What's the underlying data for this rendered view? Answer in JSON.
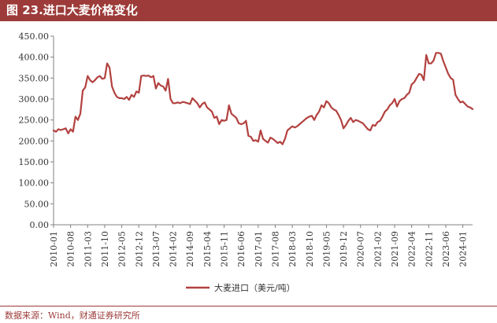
{
  "header": {
    "title": "图 23.进口大麦价格变化"
  },
  "footer": {
    "source": "数据来源：Wind，财通证券研究所"
  },
  "colors": {
    "accent": "#9c3b39",
    "series": "#b2413f",
    "axis": "#808080"
  },
  "chart_data": {
    "type": "line",
    "title": "",
    "xlabel": "",
    "ylabel": "",
    "ylim": [
      0,
      450
    ],
    "y_ticks": [
      "0.00",
      "50.00",
      "100.00",
      "150.00",
      "200.00",
      "250.00",
      "300.00",
      "350.00",
      "400.00",
      "450.00"
    ],
    "x_ticks": [
      "2010-01",
      "2010-08",
      "2011-03",
      "2011-10",
      "2012-05",
      "2012-12",
      "2013-07",
      "2014-02",
      "2014-09",
      "2015-04",
      "2015-11",
      "2016-06",
      "2017-01",
      "2017-08",
      "2018-03",
      "2018-10",
      "2019-05",
      "2019-12",
      "2020-07",
      "2021-02",
      "2021-09",
      "2022-04",
      "2022-11",
      "2023-06",
      "2024-01"
    ],
    "x_range": [
      "2010-01",
      "2024-05"
    ],
    "grid": false,
    "legend": "bottom-center",
    "series": [
      {
        "name": "大麦进口（美元/吨）",
        "x": [
          "2010-01",
          "2010-02",
          "2010-03",
          "2010-04",
          "2010-05",
          "2010-06",
          "2010-07",
          "2010-08",
          "2010-09",
          "2010-10",
          "2010-11",
          "2010-12",
          "2011-01",
          "2011-02",
          "2011-03",
          "2011-04",
          "2011-05",
          "2011-06",
          "2011-07",
          "2011-08",
          "2011-09",
          "2011-10",
          "2011-11",
          "2011-12",
          "2012-01",
          "2012-02",
          "2012-03",
          "2012-04",
          "2012-05",
          "2012-06",
          "2012-07",
          "2012-08",
          "2012-09",
          "2012-10",
          "2012-11",
          "2012-12",
          "2013-01",
          "2013-02",
          "2013-03",
          "2013-04",
          "2013-05",
          "2013-06",
          "2013-07",
          "2013-08",
          "2013-09",
          "2013-10",
          "2013-11",
          "2013-12",
          "2014-01",
          "2014-02",
          "2014-03",
          "2014-04",
          "2014-05",
          "2014-06",
          "2014-07",
          "2014-08",
          "2014-09",
          "2014-10",
          "2014-11",
          "2014-12",
          "2015-01",
          "2015-02",
          "2015-03",
          "2015-04",
          "2015-05",
          "2015-06",
          "2015-07",
          "2015-08",
          "2015-09",
          "2015-10",
          "2015-11",
          "2015-12",
          "2016-01",
          "2016-02",
          "2016-03",
          "2016-04",
          "2016-05",
          "2016-06",
          "2016-07",
          "2016-08",
          "2016-09",
          "2016-10",
          "2016-11",
          "2016-12",
          "2017-01",
          "2017-02",
          "2017-03",
          "2017-04",
          "2017-05",
          "2017-06",
          "2017-07",
          "2017-08",
          "2017-09",
          "2017-10",
          "2017-11",
          "2017-12",
          "2018-01",
          "2018-02",
          "2018-03",
          "2018-04",
          "2018-05",
          "2018-06",
          "2018-07",
          "2018-08",
          "2018-09",
          "2018-10",
          "2018-11",
          "2018-12",
          "2019-01",
          "2019-02",
          "2019-03",
          "2019-04",
          "2019-05",
          "2019-06",
          "2019-07",
          "2019-08",
          "2019-09",
          "2019-10",
          "2019-11",
          "2019-12",
          "2020-01",
          "2020-02",
          "2020-03",
          "2020-04",
          "2020-05",
          "2020-06",
          "2020-07",
          "2020-08",
          "2020-09",
          "2020-10",
          "2020-11",
          "2020-12",
          "2021-01",
          "2021-02",
          "2021-03",
          "2021-04",
          "2021-05",
          "2021-06",
          "2021-07",
          "2021-08",
          "2021-09",
          "2021-10",
          "2021-11",
          "2021-12",
          "2022-01",
          "2022-02",
          "2022-03",
          "2022-04",
          "2022-05",
          "2022-06",
          "2022-07",
          "2022-08",
          "2022-09",
          "2022-10",
          "2022-11",
          "2022-12",
          "2023-01",
          "2023-02",
          "2023-03",
          "2023-04",
          "2023-05",
          "2023-06",
          "2023-07",
          "2023-08",
          "2023-09",
          "2023-10",
          "2023-11",
          "2023-12",
          "2024-01",
          "2024-02",
          "2024-03",
          "2024-04",
          "2024-05"
        ],
        "values": [
          225,
          222,
          228,
          226,
          228,
          230,
          218,
          228,
          222,
          258,
          250,
          265,
          320,
          328,
          355,
          345,
          340,
          345,
          352,
          355,
          348,
          350,
          385,
          375,
          330,
          315,
          305,
          302,
          302,
          300,
          305,
          298,
          310,
          305,
          318,
          315,
          355,
          356,
          355,
          356,
          352,
          355,
          325,
          338,
          332,
          330,
          320,
          348,
          300,
          290,
          290,
          292,
          290,
          293,
          292,
          290,
          288,
          302,
          296,
          290,
          280,
          288,
          292,
          280,
          275,
          270,
          255,
          258,
          240,
          250,
          248,
          250,
          285,
          265,
          260,
          255,
          242,
          240,
          242,
          248,
          212,
          210,
          200,
          202,
          198,
          225,
          205,
          200,
          196,
          208,
          205,
          200,
          195,
          198,
          192,
          205,
          225,
          230,
          235,
          232,
          235,
          240,
          245,
          250,
          255,
          258,
          260,
          250,
          262,
          270,
          285,
          280,
          295,
          290,
          280,
          275,
          272,
          262,
          250,
          230,
          238,
          248,
          255,
          245,
          250,
          248,
          245,
          242,
          235,
          228,
          225,
          238,
          236,
          245,
          248,
          258,
          270,
          275,
          285,
          290,
          300,
          282,
          295,
          300,
          302,
          310,
          315,
          335,
          340,
          350,
          360,
          358,
          345,
          405,
          385,
          385,
          392,
          410,
          410,
          408,
          390,
          375,
          360,
          350,
          346,
          310,
          300,
          292,
          294,
          288,
          282,
          280,
          276
        ]
      }
    ]
  }
}
